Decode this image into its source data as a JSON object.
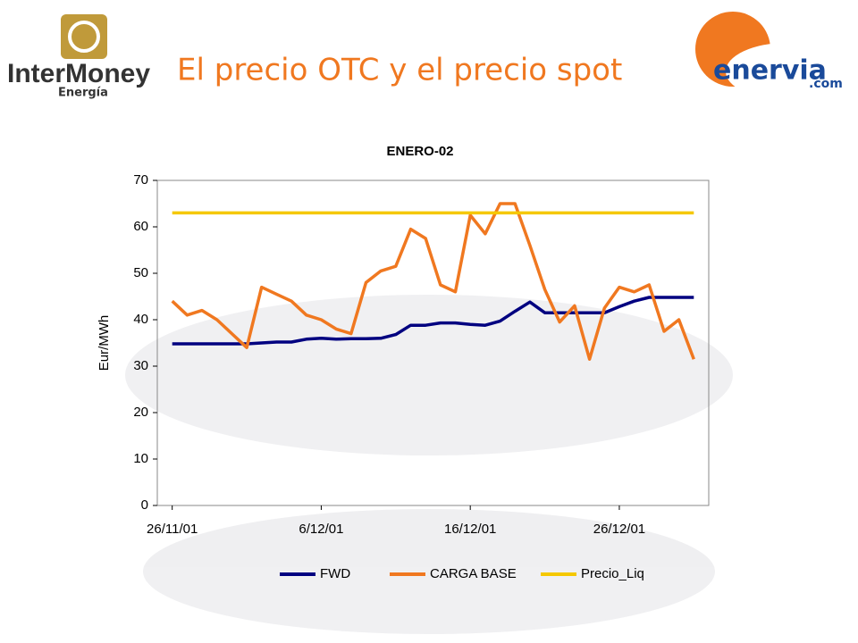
{
  "slide": {
    "logo_left": "InterMoney",
    "logo_left_sub": "Energía",
    "title": "El precio OTC y el precio spot",
    "logo_right": "enervia",
    "logo_right_sub": ".com"
  },
  "chart_data": {
    "type": "line",
    "title": "ENERO-02",
    "y_label": "Eur/MWh",
    "x": [
      "2001-11-26",
      "2001-11-27",
      "2001-11-28",
      "2001-11-29",
      "2001-11-30",
      "2001-12-01",
      "2001-12-02",
      "2001-12-03",
      "2001-12-04",
      "2001-12-05",
      "2001-12-06",
      "2001-12-07",
      "2001-12-08",
      "2001-12-09",
      "2001-12-10",
      "2001-12-11",
      "2001-12-12",
      "2001-12-13",
      "2001-12-14",
      "2001-12-15",
      "2001-12-16",
      "2001-12-17",
      "2001-12-18",
      "2001-12-19",
      "2001-12-20",
      "2001-12-21",
      "2001-12-22",
      "2001-12-23",
      "2001-12-24",
      "2001-12-25",
      "2001-12-26",
      "2001-12-27",
      "2001-12-28",
      "2001-12-29",
      "2001-12-30",
      "2001-12-31"
    ],
    "series": [
      {
        "name": "FWD",
        "color": "#000080",
        "values": [
          34.8,
          34.8,
          34.8,
          34.8,
          34.8,
          34.8,
          35.0,
          35.2,
          35.2,
          35.8,
          36.0,
          35.8,
          35.9,
          35.9,
          36.0,
          36.8,
          38.8,
          38.8,
          39.3,
          39.3,
          39.0,
          38.8,
          39.7,
          41.8,
          43.8,
          41.5,
          41.5,
          41.5,
          41.5,
          41.5,
          42.8,
          44.0,
          44.8,
          44.8,
          44.8,
          44.8
        ]
      },
      {
        "name": "CARGA BASE",
        "color": "#f07820",
        "values": [
          44,
          41,
          42,
          40,
          37,
          34,
          47,
          45.5,
          44,
          41,
          40,
          38,
          37,
          48,
          50.5,
          51.5,
          59.5,
          57.5,
          47.5,
          46,
          62.5,
          58.5,
          65,
          65,
          56,
          46.5,
          39.5,
          43,
          31.5,
          42.5,
          47,
          46,
          47.5,
          37.5,
          40,
          31.5
        ]
      },
      {
        "name": "Precio_Liq",
        "color": "#f5c800",
        "values": [
          63,
          63,
          63,
          63,
          63,
          63,
          63,
          63,
          63,
          63,
          63,
          63,
          63,
          63,
          63,
          63,
          63,
          63,
          63,
          63,
          63,
          63,
          63,
          63,
          63,
          63,
          63,
          63,
          63,
          63,
          63,
          63,
          63,
          63,
          63,
          63
        ]
      }
    ],
    "xlim": [
      "2001-11-25",
      "2002-01-01"
    ],
    "xticks": [
      {
        "value": "2001-11-26",
        "label": "26/11/01"
      },
      {
        "value": "2001-12-06",
        "label": "6/12/01"
      },
      {
        "value": "2001-12-16",
        "label": "16/12/01"
      },
      {
        "value": "2001-12-26",
        "label": "26/12/01"
      }
    ],
    "ylim": [
      0,
      70
    ],
    "yticks": [
      0,
      10,
      20,
      30,
      40,
      50,
      60,
      70
    ],
    "grid": false,
    "legend": "bottom"
  }
}
